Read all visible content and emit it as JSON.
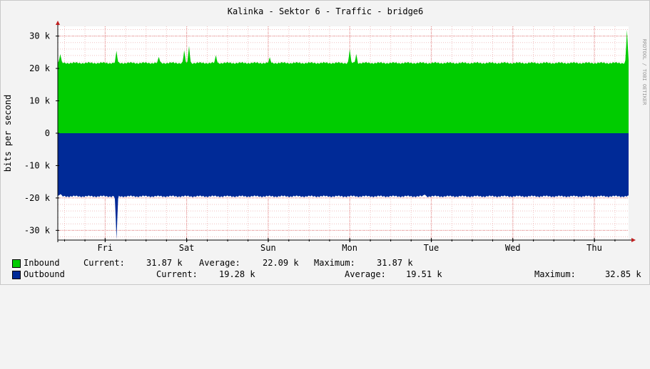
{
  "chart_data": {
    "type": "area",
    "title": "Kalinka - Sektor 6 - Traffic - bridge6",
    "ylabel": "bits per second",
    "watermark": "RRDTOOL / TOBI OETIKER",
    "ylim": [
      -33000,
      33000
    ],
    "yticks": [
      {
        "value": 30000,
        "label": "30 k"
      },
      {
        "value": 20000,
        "label": "20 k"
      },
      {
        "value": 10000,
        "label": "10 k"
      },
      {
        "value": 0,
        "label": "0"
      },
      {
        "value": -10000,
        "label": "-10 k"
      },
      {
        "value": -20000,
        "label": "-20 k"
      },
      {
        "value": -30000,
        "label": "-30 k"
      }
    ],
    "xlim": [
      0,
      7
    ],
    "xunit": "days",
    "day_labels": [
      "Fri",
      "Sat",
      "Sun",
      "Mon",
      "Tue",
      "Wed",
      "Thu"
    ],
    "day_boundaries": [
      0.58,
      1.58,
      2.58,
      3.58,
      4.58,
      5.58,
      6.58
    ],
    "grid": true,
    "series": [
      {
        "name": "Inbound",
        "color": "#00cc00",
        "baseline": 21700,
        "spikes": [
          [
            0.03,
            24500
          ],
          [
            0.72,
            25300
          ],
          [
            1.24,
            23500
          ],
          [
            1.55,
            25600
          ],
          [
            1.61,
            27000
          ],
          [
            1.94,
            24000
          ],
          [
            2.6,
            23200
          ],
          [
            3.58,
            26000
          ],
          [
            3.66,
            24500
          ],
          [
            6.98,
            32000
          ]
        ],
        "current": "31.87 k",
        "average": "22.09 k",
        "maximum": "31.87 k"
      },
      {
        "name": "Outbound",
        "color": "#002a97",
        "baseline": -19500,
        "spikes": [
          [
            0.03,
            -18800
          ],
          [
            0.72,
            -33000
          ],
          [
            4.5,
            -18800
          ]
        ],
        "current": "19.28 k",
        "average": "19.51 k",
        "maximum": "32.85 k"
      }
    ]
  },
  "legend": {
    "inbound": {
      "label": "Inbound",
      "current_label": "Current:",
      "current": "31.87 k",
      "average_label": "Average:",
      "average": "22.09 k",
      "maximum_label": "Maximum:",
      "maximum": "31.87 k"
    },
    "outbound": {
      "label": "Outbound",
      "current_label": "Current:",
      "current": "19.28 k",
      "average_label": "Average:",
      "average": "19.51 k",
      "maximum_label": "Maximum:",
      "maximum": "32.85 k"
    }
  }
}
